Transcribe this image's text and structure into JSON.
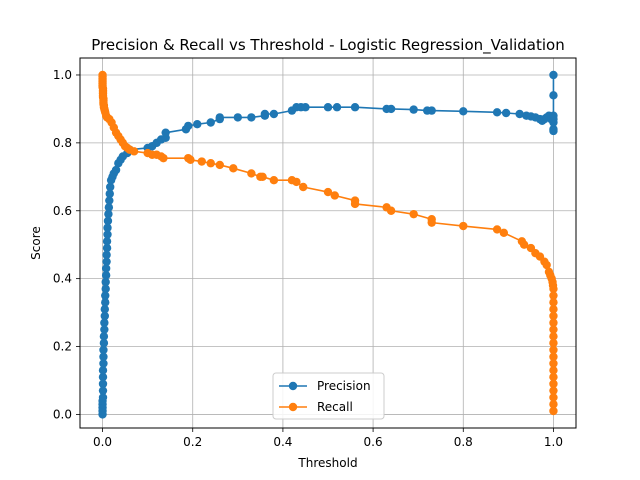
{
  "chart_data": {
    "type": "line",
    "title": "Precision & Recall vs Threshold - Logistic Regression_Validation",
    "xlabel": "Threshold",
    "ylabel": "Score",
    "xlim": [
      -0.05,
      1.05
    ],
    "ylim": [
      -0.04,
      1.05
    ],
    "xticks": [
      0.0,
      0.2,
      0.4,
      0.6,
      0.8,
      1.0
    ],
    "xtick_labels": [
      "0.0",
      "0.2",
      "0.4",
      "0.6",
      "0.8",
      "1.0"
    ],
    "yticks": [
      0.0,
      0.2,
      0.4,
      0.6,
      0.8,
      1.0
    ],
    "ytick_labels": [
      "0.0",
      "0.2",
      "0.4",
      "0.6",
      "0.8",
      "1.0"
    ],
    "grid": true,
    "legend_position": "bottom-center",
    "series": [
      {
        "name": "Precision",
        "color": "#1f77b4",
        "marker": "circle",
        "points": [
          [
            0.0,
            0.0
          ],
          [
            0.0,
            0.01
          ],
          [
            0.0,
            0.02
          ],
          [
            0.0,
            0.03
          ],
          [
            0.0,
            0.04
          ],
          [
            0.001,
            0.05
          ],
          [
            0.001,
            0.07
          ],
          [
            0.001,
            0.09
          ],
          [
            0.001,
            0.11
          ],
          [
            0.001,
            0.13
          ],
          [
            0.002,
            0.15
          ],
          [
            0.002,
            0.17
          ],
          [
            0.002,
            0.19
          ],
          [
            0.003,
            0.21
          ],
          [
            0.003,
            0.23
          ],
          [
            0.004,
            0.25
          ],
          [
            0.004,
            0.27
          ],
          [
            0.005,
            0.29
          ],
          [
            0.005,
            0.31
          ],
          [
            0.006,
            0.33
          ],
          [
            0.006,
            0.35
          ],
          [
            0.007,
            0.37
          ],
          [
            0.007,
            0.39
          ],
          [
            0.008,
            0.41
          ],
          [
            0.008,
            0.43
          ],
          [
            0.009,
            0.45
          ],
          [
            0.009,
            0.47
          ],
          [
            0.01,
            0.49
          ],
          [
            0.01,
            0.51
          ],
          [
            0.011,
            0.53
          ],
          [
            0.011,
            0.55
          ],
          [
            0.012,
            0.57
          ],
          [
            0.013,
            0.59
          ],
          [
            0.014,
            0.61
          ],
          [
            0.015,
            0.63
          ],
          [
            0.016,
            0.65
          ],
          [
            0.017,
            0.67
          ],
          [
            0.019,
            0.69
          ],
          [
            0.022,
            0.7
          ],
          [
            0.025,
            0.71
          ],
          [
            0.03,
            0.72
          ],
          [
            0.035,
            0.74
          ],
          [
            0.04,
            0.75
          ],
          [
            0.045,
            0.76
          ],
          [
            0.055,
            0.77
          ],
          [
            0.06,
            0.78
          ],
          [
            0.1,
            0.785
          ],
          [
            0.11,
            0.79
          ],
          [
            0.12,
            0.8
          ],
          [
            0.13,
            0.81
          ],
          [
            0.14,
            0.815
          ],
          [
            0.14,
            0.83
          ],
          [
            0.185,
            0.84
          ],
          [
            0.19,
            0.85
          ],
          [
            0.21,
            0.855
          ],
          [
            0.24,
            0.86
          ],
          [
            0.26,
            0.87
          ],
          [
            0.26,
            0.875
          ],
          [
            0.3,
            0.875
          ],
          [
            0.33,
            0.875
          ],
          [
            0.36,
            0.88
          ],
          [
            0.36,
            0.885
          ],
          [
            0.38,
            0.885
          ],
          [
            0.42,
            0.895
          ],
          [
            0.43,
            0.905
          ],
          [
            0.44,
            0.905
          ],
          [
            0.45,
            0.905
          ],
          [
            0.5,
            0.905
          ],
          [
            0.52,
            0.905
          ],
          [
            0.56,
            0.905
          ],
          [
            0.63,
            0.9
          ],
          [
            0.64,
            0.9
          ],
          [
            0.69,
            0.898
          ],
          [
            0.72,
            0.895
          ],
          [
            0.73,
            0.895
          ],
          [
            0.8,
            0.893
          ],
          [
            0.875,
            0.89
          ],
          [
            0.895,
            0.888
          ],
          [
            0.925,
            0.885
          ],
          [
            0.94,
            0.88
          ],
          [
            0.95,
            0.878
          ],
          [
            0.96,
            0.875
          ],
          [
            0.97,
            0.87
          ],
          [
            0.975,
            0.865
          ],
          [
            0.98,
            0.87
          ],
          [
            0.985,
            0.875
          ],
          [
            0.99,
            0.88
          ],
          [
            0.995,
            0.87
          ],
          [
            1.0,
            0.84
          ],
          [
            1.0,
            0.835
          ],
          [
            1.0,
            0.86
          ],
          [
            1.0,
            0.87
          ],
          [
            1.0,
            0.88
          ],
          [
            1.0,
            0.94
          ],
          [
            1.0,
            1.0
          ]
        ]
      },
      {
        "name": "Recall",
        "color": "#ff7f0e",
        "marker": "circle",
        "points": [
          [
            0.0,
            1.0
          ],
          [
            0.0,
            0.995
          ],
          [
            0.0,
            0.99
          ],
          [
            0.0,
            0.985
          ],
          [
            0.0,
            0.98
          ],
          [
            0.0,
            0.975
          ],
          [
            0.0,
            0.97
          ],
          [
            0.0,
            0.965
          ],
          [
            0.001,
            0.96
          ],
          [
            0.001,
            0.955
          ],
          [
            0.001,
            0.95
          ],
          [
            0.001,
            0.945
          ],
          [
            0.001,
            0.94
          ],
          [
            0.001,
            0.935
          ],
          [
            0.002,
            0.93
          ],
          [
            0.002,
            0.925
          ],
          [
            0.002,
            0.92
          ],
          [
            0.002,
            0.915
          ],
          [
            0.003,
            0.91
          ],
          [
            0.003,
            0.905
          ],
          [
            0.004,
            0.9
          ],
          [
            0.005,
            0.895
          ],
          [
            0.006,
            0.89
          ],
          [
            0.008,
            0.88
          ],
          [
            0.01,
            0.875
          ],
          [
            0.015,
            0.87
          ],
          [
            0.02,
            0.86
          ],
          [
            0.025,
            0.845
          ],
          [
            0.03,
            0.83
          ],
          [
            0.035,
            0.82
          ],
          [
            0.04,
            0.81
          ],
          [
            0.045,
            0.8
          ],
          [
            0.05,
            0.79
          ],
          [
            0.055,
            0.785
          ],
          [
            0.06,
            0.78
          ],
          [
            0.07,
            0.775
          ],
          [
            0.1,
            0.77
          ],
          [
            0.11,
            0.765
          ],
          [
            0.12,
            0.765
          ],
          [
            0.13,
            0.76
          ],
          [
            0.135,
            0.755
          ],
          [
            0.19,
            0.755
          ],
          [
            0.195,
            0.75
          ],
          [
            0.22,
            0.745
          ],
          [
            0.24,
            0.74
          ],
          [
            0.26,
            0.735
          ],
          [
            0.29,
            0.725
          ],
          [
            0.33,
            0.71
          ],
          [
            0.35,
            0.7
          ],
          [
            0.355,
            0.7
          ],
          [
            0.38,
            0.69
          ],
          [
            0.42,
            0.69
          ],
          [
            0.43,
            0.685
          ],
          [
            0.445,
            0.67
          ],
          [
            0.5,
            0.655
          ],
          [
            0.515,
            0.645
          ],
          [
            0.56,
            0.63
          ],
          [
            0.56,
            0.62
          ],
          [
            0.63,
            0.61
          ],
          [
            0.64,
            0.6
          ],
          [
            0.69,
            0.59
          ],
          [
            0.73,
            0.575
          ],
          [
            0.73,
            0.565
          ],
          [
            0.8,
            0.555
          ],
          [
            0.875,
            0.545
          ],
          [
            0.89,
            0.535
          ],
          [
            0.93,
            0.51
          ],
          [
            0.935,
            0.5
          ],
          [
            0.95,
            0.49
          ],
          [
            0.96,
            0.475
          ],
          [
            0.97,
            0.465
          ],
          [
            0.98,
            0.45
          ],
          [
            0.985,
            0.44
          ],
          [
            0.99,
            0.42
          ],
          [
            0.993,
            0.41
          ],
          [
            0.996,
            0.4
          ],
          [
            0.998,
            0.39
          ],
          [
            0.999,
            0.38
          ],
          [
            1.0,
            0.37
          ],
          [
            1.0,
            0.35
          ],
          [
            1.0,
            0.33
          ],
          [
            1.0,
            0.31
          ],
          [
            1.0,
            0.29
          ],
          [
            1.0,
            0.27
          ],
          [
            1.0,
            0.25
          ],
          [
            1.0,
            0.23
          ],
          [
            1.0,
            0.21
          ],
          [
            1.0,
            0.19
          ],
          [
            1.0,
            0.17
          ],
          [
            1.0,
            0.15
          ],
          [
            1.0,
            0.13
          ],
          [
            1.0,
            0.11
          ],
          [
            1.0,
            0.09
          ],
          [
            1.0,
            0.07
          ],
          [
            1.0,
            0.05
          ],
          [
            1.0,
            0.03
          ],
          [
            1.0,
            0.01
          ]
        ]
      }
    ]
  }
}
